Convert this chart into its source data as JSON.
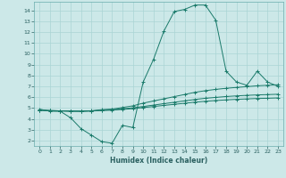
{
  "title": "",
  "xlabel": "Humidex (Indice chaleur)",
  "ylabel": "",
  "bg_color": "#cce8e8",
  "grid_color": "#aad4d4",
  "line_color": "#1a7a6a",
  "xlim": [
    -0.5,
    23.5
  ],
  "ylim": [
    1.5,
    14.8
  ],
  "yticks": [
    2,
    3,
    4,
    5,
    6,
    7,
    8,
    9,
    10,
    11,
    12,
    13,
    14
  ],
  "xticks": [
    0,
    1,
    2,
    3,
    4,
    5,
    6,
    7,
    8,
    9,
    10,
    11,
    12,
    13,
    14,
    15,
    16,
    17,
    18,
    19,
    20,
    21,
    22,
    23
  ],
  "series": [
    {
      "x": [
        0,
        1,
        2,
        3,
        4,
        5,
        6,
        7,
        8,
        9,
        10,
        11,
        12,
        13,
        14,
        15,
        16,
        17,
        18,
        19,
        20,
        21,
        22,
        23
      ],
      "y": [
        4.9,
        4.7,
        4.7,
        4.1,
        3.1,
        2.5,
        1.9,
        1.75,
        3.4,
        3.2,
        7.4,
        9.5,
        12.1,
        13.9,
        14.1,
        14.5,
        14.5,
        13.1,
        8.4,
        7.4,
        7.1,
        8.4,
        7.4,
        7.0
      ]
    },
    {
      "x": [
        0,
        1,
        2,
        3,
        4,
        5,
        6,
        7,
        8,
        9,
        10,
        11,
        12,
        13,
        14,
        15,
        16,
        17,
        18,
        19,
        20,
        21,
        22,
        23
      ],
      "y": [
        4.8,
        4.75,
        4.72,
        4.7,
        4.7,
        4.75,
        4.85,
        4.9,
        5.05,
        5.2,
        5.45,
        5.65,
        5.85,
        6.05,
        6.25,
        6.45,
        6.6,
        6.72,
        6.82,
        6.9,
        6.97,
        7.05,
        7.1,
        7.15
      ]
    },
    {
      "x": [
        0,
        1,
        2,
        3,
        4,
        5,
        6,
        7,
        8,
        9,
        10,
        11,
        12,
        13,
        14,
        15,
        16,
        17,
        18,
        19,
        20,
        21,
        22,
        23
      ],
      "y": [
        4.8,
        4.77,
        4.74,
        4.72,
        4.71,
        4.73,
        4.8,
        4.84,
        4.93,
        5.02,
        5.14,
        5.27,
        5.4,
        5.53,
        5.66,
        5.79,
        5.9,
        5.98,
        6.06,
        6.12,
        6.17,
        6.21,
        6.24,
        6.27
      ]
    },
    {
      "x": [
        0,
        1,
        2,
        3,
        4,
        5,
        6,
        7,
        8,
        9,
        10,
        11,
        12,
        13,
        14,
        15,
        16,
        17,
        18,
        19,
        20,
        21,
        22,
        23
      ],
      "y": [
        4.8,
        4.77,
        4.74,
        4.72,
        4.7,
        4.72,
        4.77,
        4.8,
        4.87,
        4.94,
        5.04,
        5.14,
        5.24,
        5.34,
        5.44,
        5.54,
        5.62,
        5.69,
        5.75,
        5.8,
        5.84,
        5.88,
        5.9,
        5.93
      ]
    }
  ]
}
